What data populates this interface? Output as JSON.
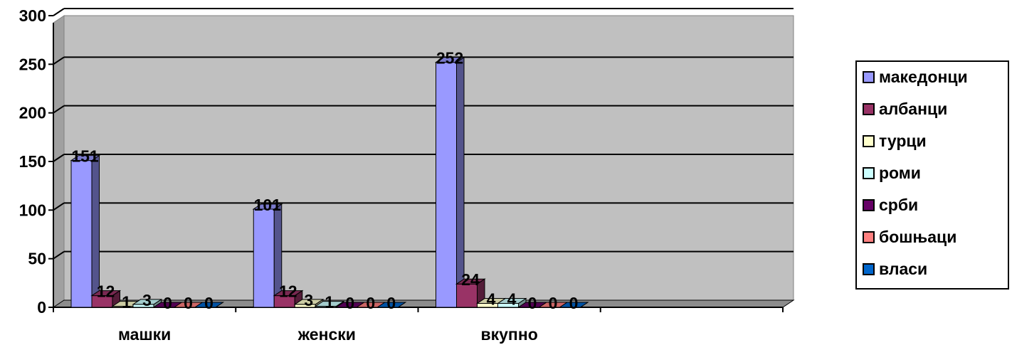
{
  "chart_data": {
    "type": "bar",
    "categories": [
      "машки",
      "женски",
      "вкупно"
    ],
    "series": [
      {
        "name": "македонци",
        "values": [
          151,
          101,
          252
        ],
        "color": "#9999ff"
      },
      {
        "name": "албанци",
        "values": [
          12,
          12,
          24
        ],
        "color": "#993366"
      },
      {
        "name": "турци",
        "values": [
          1,
          3,
          4
        ],
        "color": "#ffffcc"
      },
      {
        "name": "роми",
        "values": [
          3,
          1,
          4
        ],
        "color": "#ccffff"
      },
      {
        "name": "срби",
        "values": [
          0,
          0,
          0
        ],
        "color": "#660066"
      },
      {
        "name": "бошњаци",
        "values": [
          0,
          0,
          0
        ],
        "color": "#ff8080"
      },
      {
        "name": "власи",
        "values": [
          0,
          0,
          0
        ],
        "color": "#0066cc"
      }
    ],
    "yticks": [
      "0",
      "50",
      "100",
      "150",
      "200",
      "250",
      "300"
    ],
    "ylim": [
      0,
      300
    ],
    "grid": true,
    "legend": "right",
    "plot_background": "#c0c0c0"
  }
}
